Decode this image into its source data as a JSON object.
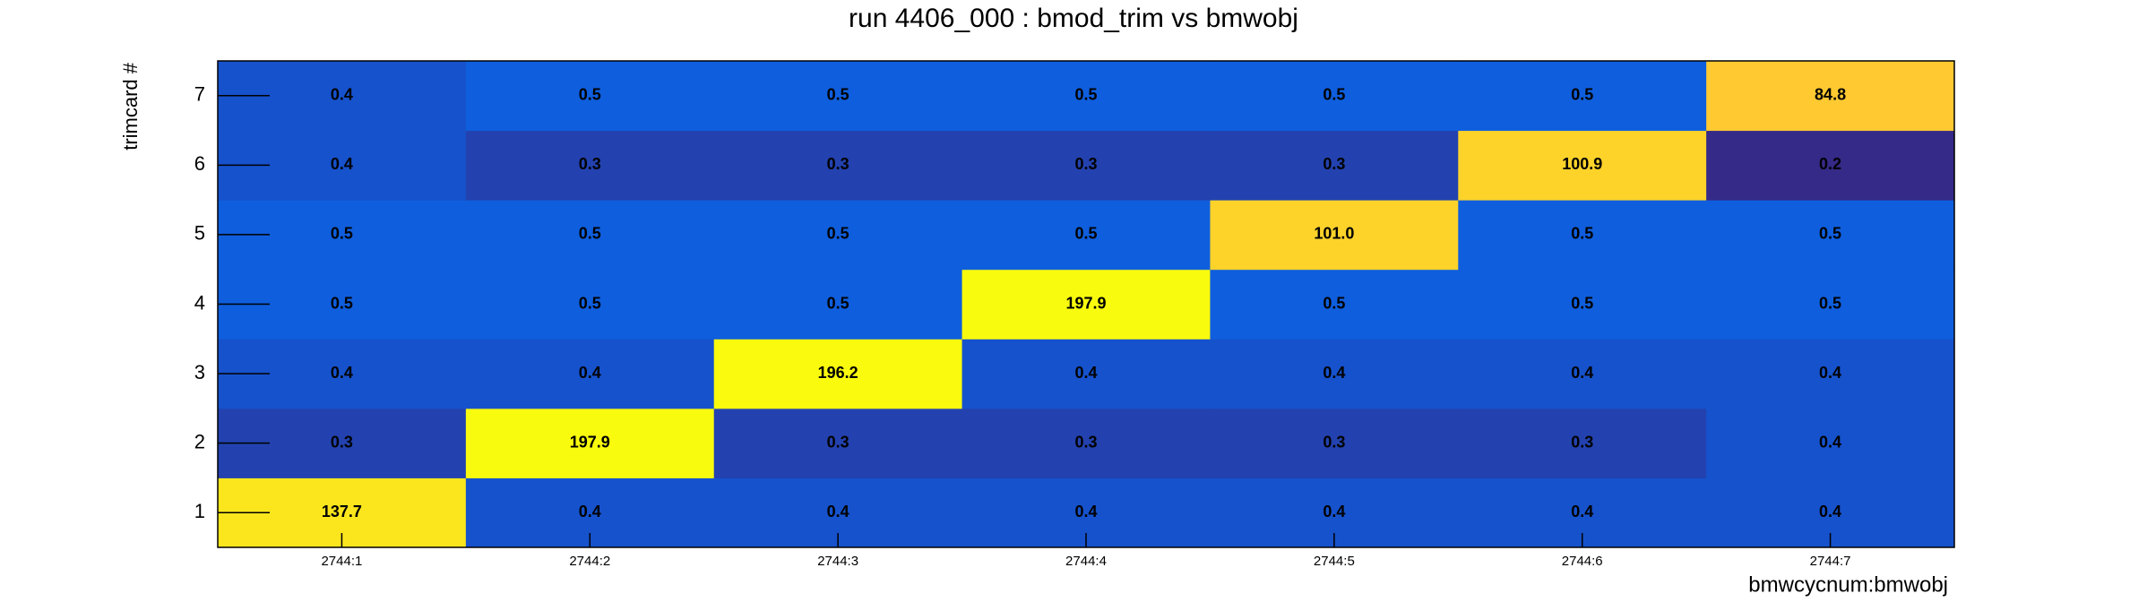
{
  "chart_data": {
    "type": "heatmap",
    "title": "run 4406_000 : bmod_trim vs bmwobj",
    "x_label": "bmwcycnum:bmwobj",
    "y_label": "trimcard #",
    "x": [
      "2744:1",
      "2744:2",
      "2744:3",
      "2744:4",
      "2744:5",
      "2744:6",
      "2744:7"
    ],
    "y": [
      "1",
      "2",
      "3",
      "4",
      "5",
      "6",
      "7"
    ],
    "values": [
      [
        137.7,
        0.4,
        0.4,
        0.4,
        0.4,
        0.4,
        0.4
      ],
      [
        0.3,
        197.9,
        0.3,
        0.3,
        0.3,
        0.3,
        0.4
      ],
      [
        0.4,
        0.4,
        196.2,
        0.4,
        0.4,
        0.4,
        0.4
      ],
      [
        0.5,
        0.5,
        0.5,
        197.9,
        0.5,
        0.5,
        0.5
      ],
      [
        0.5,
        0.5,
        0.5,
        0.5,
        101.0,
        0.5,
        0.5
      ],
      [
        0.4,
        0.3,
        0.3,
        0.3,
        0.3,
        100.9,
        0.2
      ],
      [
        0.4,
        0.5,
        0.5,
        0.5,
        0.5,
        0.5,
        84.8
      ]
    ],
    "value_labels": [
      [
        "137.7",
        "0.4",
        "0.4",
        "0.4",
        "0.4",
        "0.4",
        "0.4"
      ],
      [
        "0.3",
        "197.9",
        "0.3",
        "0.3",
        "0.3",
        "0.3",
        "0.4"
      ],
      [
        "0.4",
        "0.4",
        "196.2",
        "0.4",
        "0.4",
        "0.4",
        "0.4"
      ],
      [
        "0.5",
        "0.5",
        "0.5",
        "197.9",
        "0.5",
        "0.5",
        "0.5"
      ],
      [
        "0.5",
        "0.5",
        "0.5",
        "0.5",
        "101.0",
        "0.5",
        "0.5"
      ],
      [
        "0.4",
        "0.3",
        "0.3",
        "0.3",
        "0.3",
        "100.9",
        "0.2"
      ],
      [
        "0.4",
        "0.5",
        "0.5",
        "0.5",
        "0.5",
        "0.5",
        "84.8"
      ]
    ],
    "zlog": true,
    "colorscale": [
      "#352a87",
      "#0f5cdd",
      "#1481d6",
      "#06a4ca",
      "#2eb7a4",
      "#87bf77",
      "#d1bb59",
      "#fec832",
      "#f9fb0e"
    ]
  }
}
